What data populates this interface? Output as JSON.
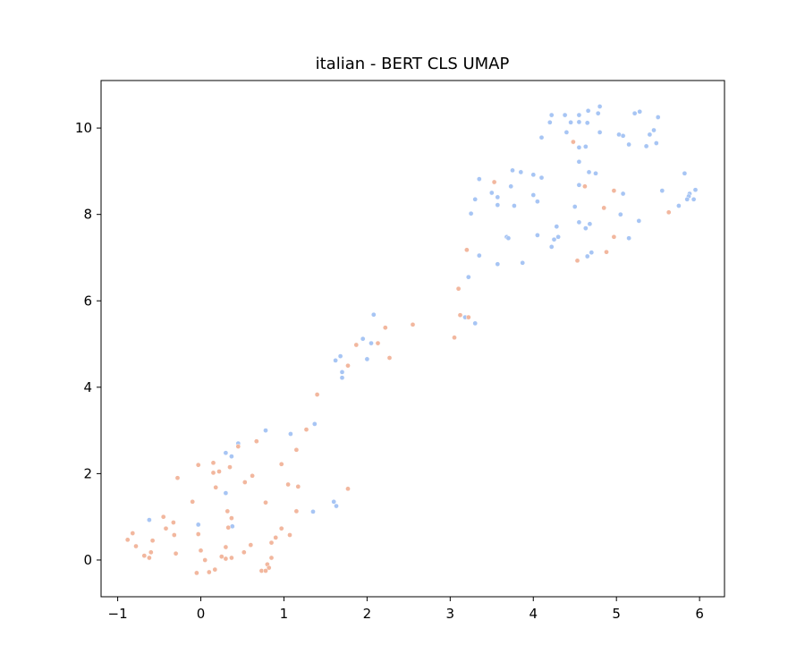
{
  "chart_data": {
    "type": "scatter",
    "title": "italian - BERT CLS UMAP",
    "xlabel": "",
    "ylabel": "",
    "xlim": [
      -1.2,
      6.3
    ],
    "ylim": [
      -0.85,
      11.1
    ],
    "xticks": [
      -1,
      0,
      1,
      2,
      3,
      4,
      5,
      6
    ],
    "yticks": [
      0,
      2,
      4,
      6,
      8,
      10
    ],
    "grid": false,
    "legend": "none",
    "colors": {
      "blue": "#a7c5f4",
      "orange": "#f2b79e"
    },
    "series": [
      {
        "color": "#a7c5f4",
        "points": [
          [
            4.22,
            10.3
          ],
          [
            4.38,
            10.3
          ],
          [
            4.55,
            10.3
          ],
          [
            4.66,
            10.4
          ],
          [
            4.8,
            10.5
          ],
          [
            4.78,
            10.34
          ],
          [
            5.22,
            10.34
          ],
          [
            5.28,
            10.38
          ],
          [
            5.5,
            10.25
          ],
          [
            4.2,
            10.13
          ],
          [
            4.45,
            10.13
          ],
          [
            4.55,
            10.14
          ],
          [
            4.65,
            10.12
          ],
          [
            4.4,
            9.9
          ],
          [
            4.8,
            9.9
          ],
          [
            5.03,
            9.85
          ],
          [
            5.08,
            9.82
          ],
          [
            5.4,
            9.85
          ],
          [
            5.45,
            9.95
          ],
          [
            4.1,
            9.78
          ],
          [
            4.55,
            9.55
          ],
          [
            4.63,
            9.57
          ],
          [
            5.15,
            9.62
          ],
          [
            5.36,
            9.58
          ],
          [
            5.48,
            9.65
          ],
          [
            4.55,
            9.22
          ],
          [
            4.67,
            8.98
          ],
          [
            4.75,
            8.95
          ],
          [
            5.82,
            8.95
          ],
          [
            3.75,
            9.02
          ],
          [
            3.85,
            8.98
          ],
          [
            4.0,
            8.92
          ],
          [
            4.1,
            8.85
          ],
          [
            3.35,
            8.82
          ],
          [
            3.73,
            8.65
          ],
          [
            3.5,
            8.5
          ],
          [
            3.57,
            8.4
          ],
          [
            4.0,
            8.45
          ],
          [
            4.05,
            8.3
          ],
          [
            3.3,
            8.35
          ],
          [
            3.57,
            8.22
          ],
          [
            3.77,
            8.2
          ],
          [
            3.25,
            8.02
          ],
          [
            4.5,
            8.18
          ],
          [
            4.55,
            8.68
          ],
          [
            5.08,
            8.48
          ],
          [
            5.55,
            8.55
          ],
          [
            5.95,
            8.57
          ],
          [
            5.88,
            8.48
          ],
          [
            5.87,
            8.42
          ],
          [
            5.85,
            8.35
          ],
          [
            5.93,
            8.35
          ],
          [
            5.75,
            8.2
          ],
          [
            5.05,
            8.0
          ],
          [
            5.27,
            7.85
          ],
          [
            4.55,
            7.82
          ],
          [
            4.68,
            7.78
          ],
          [
            4.63,
            7.68
          ],
          [
            4.28,
            7.72
          ],
          [
            4.05,
            7.52
          ],
          [
            3.68,
            7.48
          ],
          [
            3.7,
            7.45
          ],
          [
            4.25,
            7.42
          ],
          [
            4.3,
            7.48
          ],
          [
            4.22,
            7.25
          ],
          [
            5.15,
            7.45
          ],
          [
            4.7,
            7.12
          ],
          [
            4.65,
            7.03
          ],
          [
            3.35,
            7.05
          ],
          [
            3.57,
            6.85
          ],
          [
            3.87,
            6.88
          ],
          [
            3.22,
            6.55
          ],
          [
            3.18,
            5.62
          ],
          [
            3.3,
            5.48
          ],
          [
            2.08,
            5.68
          ],
          [
            1.95,
            5.12
          ],
          [
            2.05,
            5.02
          ],
          [
            1.68,
            4.72
          ],
          [
            1.62,
            4.62
          ],
          [
            2.0,
            4.65
          ],
          [
            1.7,
            4.35
          ],
          [
            1.7,
            4.22
          ],
          [
            1.37,
            3.15
          ],
          [
            0.78,
            3.0
          ],
          [
            1.08,
            2.92
          ],
          [
            0.45,
            2.7
          ],
          [
            0.37,
            2.4
          ],
          [
            0.3,
            2.48
          ],
          [
            0.3,
            1.55
          ],
          [
            1.6,
            1.35
          ],
          [
            1.63,
            1.25
          ],
          [
            1.35,
            1.12
          ],
          [
            -0.62,
            0.93
          ],
          [
            -0.03,
            0.82
          ],
          [
            0.38,
            0.78
          ]
        ]
      },
      {
        "color": "#f2b79e",
        "points": [
          [
            4.48,
            9.68
          ],
          [
            3.53,
            8.75
          ],
          [
            4.62,
            8.65
          ],
          [
            4.97,
            8.55
          ],
          [
            4.85,
            8.15
          ],
          [
            5.63,
            8.05
          ],
          [
            4.97,
            7.48
          ],
          [
            4.88,
            7.13
          ],
          [
            4.53,
            6.93
          ],
          [
            3.2,
            7.18
          ],
          [
            3.1,
            6.28
          ],
          [
            3.12,
            5.67
          ],
          [
            3.22,
            5.62
          ],
          [
            3.05,
            5.15
          ],
          [
            2.55,
            5.45
          ],
          [
            2.22,
            5.38
          ],
          [
            2.13,
            5.02
          ],
          [
            1.87,
            4.98
          ],
          [
            1.77,
            4.5
          ],
          [
            2.27,
            4.68
          ],
          [
            1.4,
            3.83
          ],
          [
            1.27,
            3.02
          ],
          [
            1.15,
            2.55
          ],
          [
            0.67,
            2.75
          ],
          [
            0.45,
            2.63
          ],
          [
            0.97,
            2.22
          ],
          [
            0.15,
            2.25
          ],
          [
            -0.03,
            2.2
          ],
          [
            0.22,
            2.05
          ],
          [
            0.35,
            2.15
          ],
          [
            0.15,
            2.02
          ],
          [
            0.62,
            1.95
          ],
          [
            0.53,
            1.8
          ],
          [
            -0.28,
            1.9
          ],
          [
            0.18,
            1.68
          ],
          [
            1.05,
            1.75
          ],
          [
            1.17,
            1.7
          ],
          [
            1.77,
            1.65
          ],
          [
            -0.1,
            1.35
          ],
          [
            0.78,
            1.33
          ],
          [
            0.32,
            1.13
          ],
          [
            0.37,
            0.97
          ],
          [
            1.15,
            1.13
          ],
          [
            -0.45,
            1.0
          ],
          [
            -0.33,
            0.87
          ],
          [
            -0.42,
            0.73
          ],
          [
            0.33,
            0.75
          ],
          [
            0.97,
            0.73
          ],
          [
            -0.32,
            0.58
          ],
          [
            -0.03,
            0.6
          ],
          [
            0.9,
            0.52
          ],
          [
            1.07,
            0.58
          ],
          [
            -0.82,
            0.62
          ],
          [
            -0.88,
            0.47
          ],
          [
            -0.58,
            0.45
          ],
          [
            -0.78,
            0.32
          ],
          [
            0.85,
            0.4
          ],
          [
            -0.6,
            0.18
          ],
          [
            -0.3,
            0.15
          ],
          [
            -0.68,
            0.1
          ],
          [
            -0.62,
            0.05
          ],
          [
            0.0,
            0.22
          ],
          [
            0.3,
            0.3
          ],
          [
            0.52,
            0.18
          ],
          [
            0.6,
            0.35
          ],
          [
            0.05,
            0.0
          ],
          [
            0.25,
            0.08
          ],
          [
            0.3,
            0.03
          ],
          [
            0.37,
            0.05
          ],
          [
            0.85,
            0.05
          ],
          [
            0.8,
            -0.1
          ],
          [
            0.82,
            -0.18
          ],
          [
            0.73,
            -0.25
          ],
          [
            0.78,
            -0.25
          ],
          [
            0.17,
            -0.22
          ],
          [
            0.1,
            -0.28
          ],
          [
            -0.05,
            -0.3
          ]
        ]
      }
    ]
  }
}
